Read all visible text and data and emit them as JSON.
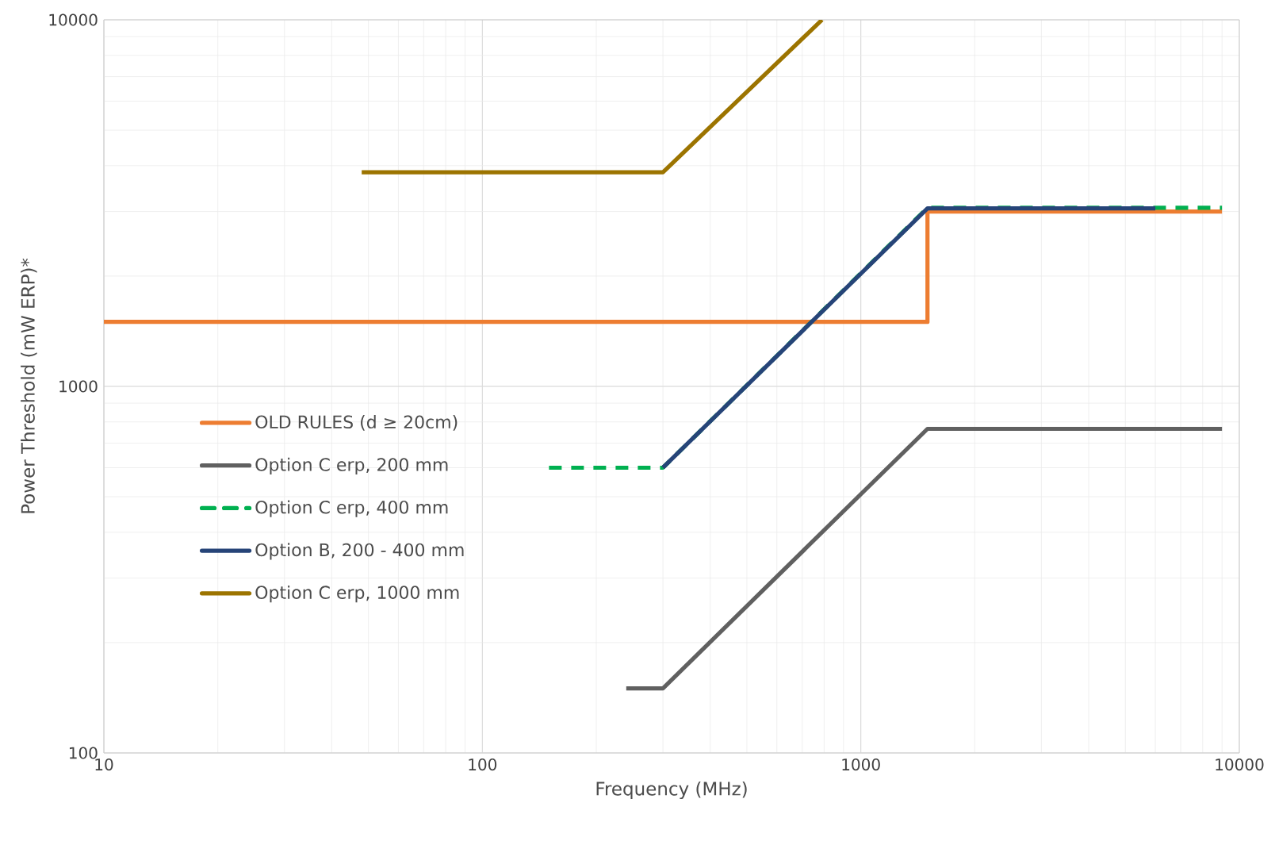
{
  "chart_data": {
    "type": "line",
    "xlabel": "Frequency (MHz)",
    "ylabel": "Power Threshold (mW ERP)*",
    "log": "xy",
    "grid": true,
    "legend": "left",
    "marker": "none",
    "xlim": [
      10,
      10000
    ],
    "xticks": [
      10,
      100,
      1000,
      10000
    ],
    "ylim": [
      100,
      10000
    ],
    "yticks": [
      100,
      1000,
      10000
    ],
    "series": [
      {
        "name": "OLD RULES (d ≥ 20cm)",
        "color": "#ed7d31",
        "line_style": "solid",
        "x": [
          10,
          1500,
          1500,
          9000
        ],
        "values": [
          1500,
          1500,
          3000,
          3000
        ]
      },
      {
        "name": "Option C erp,  200 mm",
        "color": "#606060",
        "line_style": "solid",
        "x": [
          240,
          300,
          1500,
          9000
        ],
        "values": [
          150,
          150,
          766,
          766
        ]
      },
      {
        "name": "Option C erp,  400 mm",
        "color": "#00b050",
        "line_style": "dashed",
        "x": [
          150,
          300,
          1500,
          9000
        ],
        "values": [
          600,
          600,
          3070,
          3070
        ]
      },
      {
        "name": "Option B, 200 - 400 mm",
        "color": "#264478",
        "line_style": "solid",
        "x": [
          300,
          1500,
          6000
        ],
        "values": [
          600,
          3060,
          3060
        ]
      },
      {
        "name": "Option C erp,  1000 mm",
        "color": "#9c7400",
        "line_style": "solid",
        "x": [
          48,
          300,
          790
        ],
        "values": [
          3840,
          3840,
          10000
        ]
      }
    ]
  }
}
